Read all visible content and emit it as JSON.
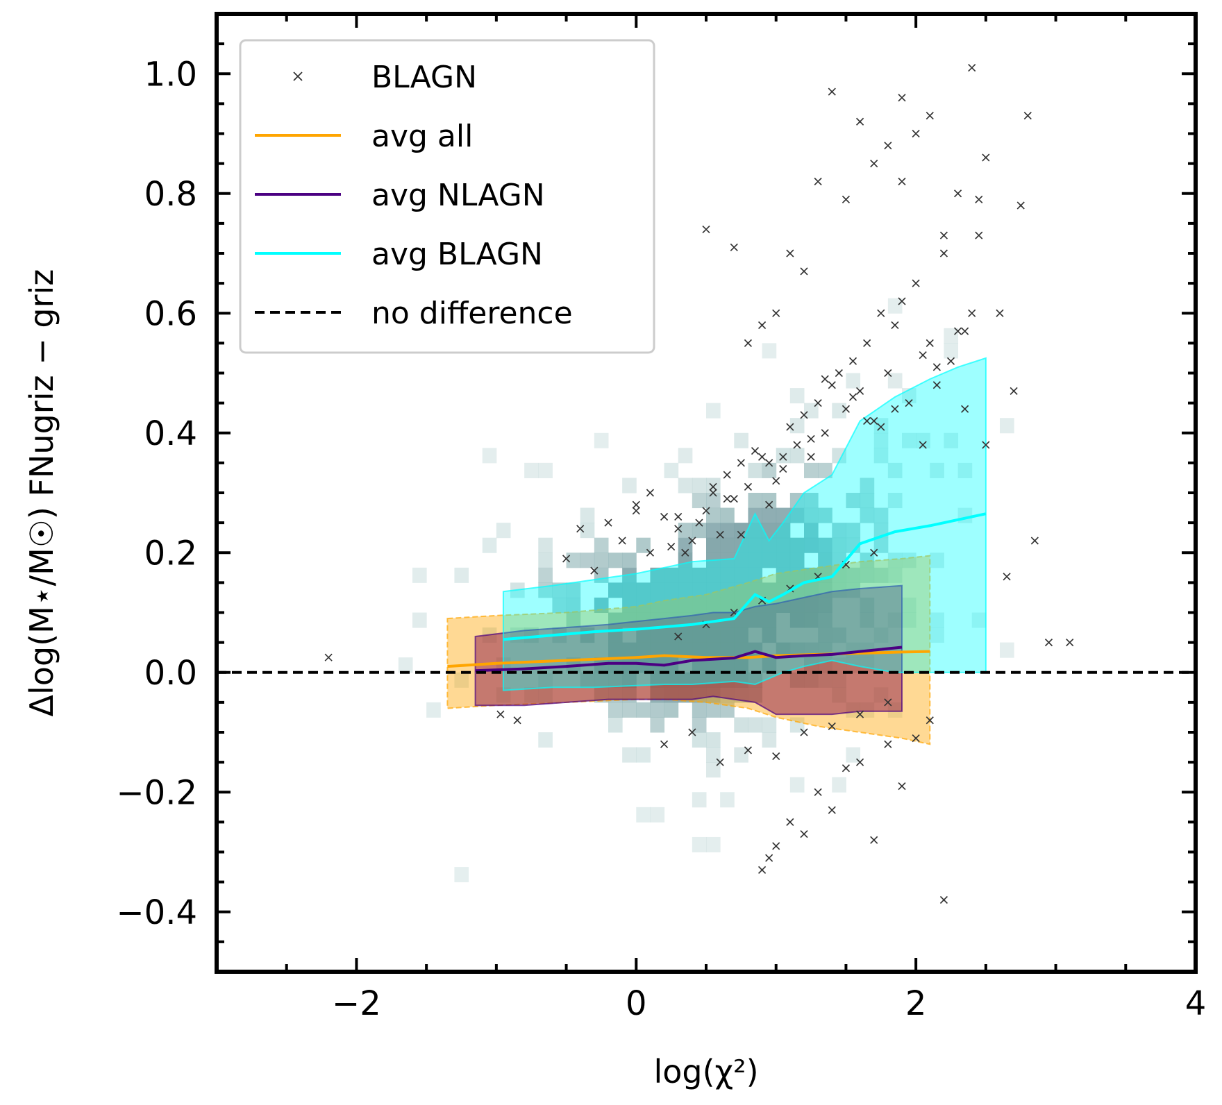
{
  "chart_data": {
    "type": "scatter",
    "xlabel": "log(χ²)",
    "ylabel": "Δlog(M⋆/M☉) FNugriz − griz",
    "xlim": [
      -3,
      4
    ],
    "ylim": [
      -0.5,
      1.1
    ],
    "xticks": [
      -2,
      0,
      2,
      4
    ],
    "xtick_labels": [
      "−2",
      "0",
      "2",
      "4"
    ],
    "yticks": [
      -0.4,
      -0.2,
      0.0,
      0.2,
      0.4,
      0.6,
      0.8,
      1.0
    ],
    "ytick_labels": [
      "−0.4",
      "−0.2",
      "0.0",
      "0.2",
      "0.4",
      "0.6",
      "0.8",
      "1.0"
    ],
    "grid": false,
    "legend_position": "top-left",
    "legend": [
      {
        "label": "BLAGN",
        "kind": "marker",
        "color": "#333333"
      },
      {
        "label": "avg all",
        "kind": "line",
        "color": "#ffa500"
      },
      {
        "label": "avg NLAGN",
        "kind": "line",
        "color": "#4b0082"
      },
      {
        "label": "avg BLAGN",
        "kind": "line",
        "color": "#00ffff"
      },
      {
        "label": "no difference",
        "kind": "dashed",
        "color": "#000000"
      }
    ],
    "colors": {
      "hist": "#9fc2c2",
      "avg_all": "#ffa500",
      "avg_nlagn": "#4b0082",
      "avg_blagn": "#00ffff",
      "nlagn_band": "#8b1a4a",
      "reference": "#000000"
    },
    "series": [
      {
        "name": "avg all",
        "x": [
          -1.35,
          -1.0,
          -0.5,
          0.0,
          0.2,
          0.5,
          0.8,
          1.0,
          1.3,
          1.6,
          1.9,
          2.1
        ],
        "y": [
          0.01,
          0.015,
          0.02,
          0.025,
          0.028,
          0.025,
          0.025,
          0.028,
          0.03,
          0.032,
          0.034,
          0.035
        ],
        "lower": [
          -0.06,
          -0.055,
          -0.05,
          -0.045,
          -0.045,
          -0.05,
          -0.06,
          -0.075,
          -0.09,
          -0.1,
          -0.11,
          -0.12
        ],
        "upper": [
          0.09,
          0.095,
          0.1,
          0.11,
          0.12,
          0.13,
          0.15,
          0.165,
          0.175,
          0.185,
          0.19,
          0.195
        ]
      },
      {
        "name": "avg NLAGN",
        "x": [
          -1.15,
          -0.8,
          -0.5,
          -0.2,
          0.0,
          0.2,
          0.4,
          0.55,
          0.7,
          0.85,
          1.0,
          1.2,
          1.4,
          1.6,
          1.9
        ],
        "y": [
          0.003,
          0.006,
          0.01,
          0.015,
          0.015,
          0.012,
          0.02,
          0.022,
          0.024,
          0.035,
          0.025,
          0.028,
          0.03,
          0.035,
          0.042
        ],
        "lower": [
          -0.055,
          -0.055,
          -0.05,
          -0.045,
          -0.045,
          -0.045,
          -0.045,
          -0.04,
          -0.045,
          -0.05,
          -0.07,
          -0.07,
          -0.07,
          -0.065,
          -0.065
        ],
        "upper": [
          0.06,
          0.07,
          0.075,
          0.08,
          0.085,
          0.09,
          0.095,
          0.1,
          0.1,
          0.11,
          0.115,
          0.125,
          0.135,
          0.14,
          0.145
        ]
      },
      {
        "name": "avg BLAGN",
        "x": [
          -0.95,
          -0.6,
          -0.3,
          0.0,
          0.2,
          0.4,
          0.7,
          0.85,
          0.95,
          1.05,
          1.2,
          1.4,
          1.6,
          1.85,
          2.1,
          2.3,
          2.5
        ],
        "y": [
          0.055,
          0.062,
          0.068,
          0.072,
          0.076,
          0.08,
          0.09,
          0.13,
          0.118,
          0.13,
          0.15,
          0.16,
          0.215,
          0.235,
          0.245,
          0.255,
          0.265
        ],
        "lower": [
          -0.03,
          -0.025,
          -0.025,
          -0.022,
          -0.02,
          -0.02,
          -0.015,
          -0.02,
          -0.01,
          0.0,
          0.01,
          0.02,
          0.01,
          0.0,
          0.0,
          0.0,
          0.0
        ],
        "upper": [
          0.135,
          0.145,
          0.155,
          0.165,
          0.175,
          0.185,
          0.19,
          0.265,
          0.22,
          0.25,
          0.3,
          0.33,
          0.42,
          0.46,
          0.49,
          0.51,
          0.525
        ]
      }
    ],
    "blagn_points_x": [
      -2.2,
      -0.97,
      -0.85,
      -0.5,
      -0.3,
      -0.2,
      -0.1,
      0.0,
      0.1,
      0.2,
      0.25,
      0.3,
      0.35,
      0.4,
      0.45,
      0.5,
      0.55,
      0.6,
      0.65,
      0.7,
      0.75,
      0.8,
      0.85,
      0.9,
      0.95,
      1.0,
      1.05,
      1.1,
      1.15,
      1.2,
      1.25,
      1.3,
      1.35,
      1.4,
      1.45,
      1.5,
      1.55,
      1.6,
      1.65,
      1.7,
      1.75,
      1.8,
      1.85,
      1.9,
      1.95,
      2.0,
      2.05,
      2.1,
      2.15,
      2.2,
      2.25,
      2.3,
      2.35,
      2.4,
      2.45,
      2.5,
      2.6,
      2.7,
      2.8,
      2.95,
      3.1,
      0.9,
      0.95,
      1.0,
      1.1,
      1.2,
      1.3,
      1.4,
      1.5,
      1.6,
      1.7,
      1.8,
      1.9,
      2.0,
      2.1,
      2.2,
      0.2,
      0.4,
      0.6,
      0.8,
      1.0,
      1.2,
      1.4,
      1.6,
      1.8,
      0.3,
      0.5,
      0.7,
      0.9,
      1.1,
      1.3,
      1.5,
      1.7,
      0.5,
      0.7,
      0.9,
      1.1,
      1.3,
      1.5,
      1.7,
      1.9,
      2.1,
      1.4,
      1.6,
      1.8,
      2.0,
      2.3,
      2.5,
      2.75,
      0.8,
      1.0,
      1.2,
      1.9,
      2.2,
      2.45,
      0.0,
      -0.4,
      0.65,
      0.95,
      1.25,
      1.55,
      1.75,
      2.05,
      2.35,
      2.65,
      2.85,
      0.1,
      0.3,
      0.55,
      0.75,
      1.05,
      1.35,
      1.65,
      1.85,
      2.15,
      2.4
    ],
    "blagn_points_y": [
      0.025,
      -0.07,
      -0.08,
      0.19,
      0.17,
      0.25,
      0.22,
      0.28,
      0.3,
      0.26,
      0.21,
      0.24,
      0.2,
      0.22,
      0.25,
      0.27,
      0.3,
      0.23,
      0.33,
      0.29,
      0.35,
      0.31,
      0.37,
      0.36,
      0.28,
      0.32,
      0.34,
      0.41,
      0.38,
      0.43,
      0.36,
      0.45,
      0.4,
      0.48,
      0.5,
      0.44,
      0.52,
      0.47,
      0.55,
      0.42,
      0.6,
      0.5,
      0.58,
      0.62,
      0.45,
      0.65,
      0.38,
      0.55,
      0.48,
      0.7,
      0.52,
      0.57,
      0.44,
      0.6,
      0.73,
      0.38,
      0.6,
      0.47,
      0.93,
      0.05,
      0.05,
      -0.33,
      -0.31,
      -0.29,
      -0.25,
      -0.27,
      -0.2,
      -0.23,
      -0.16,
      -0.15,
      -0.28,
      -0.12,
      -0.19,
      -0.11,
      -0.08,
      -0.38,
      -0.12,
      -0.1,
      -0.15,
      -0.13,
      -0.14,
      -0.1,
      -0.09,
      -0.07,
      -0.05,
      0.06,
      0.08,
      0.1,
      0.12,
      0.14,
      0.16,
      0.18,
      0.2,
      0.74,
      0.71,
      0.58,
      0.7,
      0.82,
      0.79,
      0.85,
      0.96,
      0.93,
      0.97,
      0.92,
      0.88,
      0.9,
      0.8,
      0.86,
      0.78,
      0.55,
      0.6,
      0.67,
      0.82,
      0.73,
      0.79,
      0.27,
      0.24,
      0.29,
      0.35,
      0.39,
      0.46,
      0.41,
      0.53,
      0.57,
      0.16,
      0.22,
      0.2,
      0.26,
      0.31,
      0.23,
      0.36,
      0.49,
      0.42,
      0.44,
      0.51,
      1.01
    ]
  }
}
